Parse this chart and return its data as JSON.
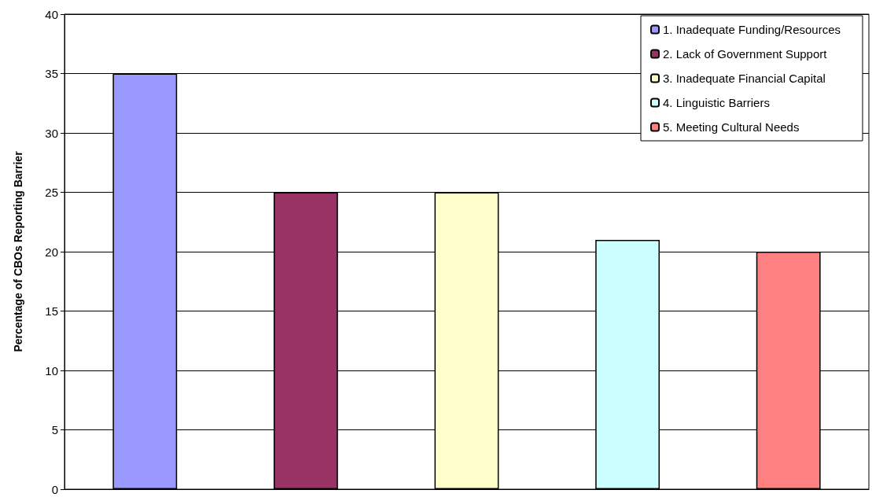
{
  "chart_data": {
    "type": "bar",
    "ylabel": "Percentage of CBOs Reporting Barrier",
    "categories": [
      null,
      null,
      null,
      null,
      null
    ],
    "series": [
      {
        "name": "1. Inadequate Funding/Resources",
        "color": "#9999ff",
        "values": [
          35,
          null,
          null,
          null,
          null
        ]
      },
      {
        "name": "2. Lack of Government Support",
        "color": "#993366",
        "values": [
          null,
          25,
          null,
          null,
          null
        ]
      },
      {
        "name": "3. Inadequate Financial Capital",
        "color": "#ffffcc",
        "values": [
          null,
          null,
          25,
          null,
          null
        ]
      },
      {
        "name": "4. Linguistic Barriers",
        "color": "#ccffff",
        "values": [
          null,
          null,
          null,
          21,
          null
        ]
      },
      {
        "name": "5. Meeting Cultural Needs",
        "color": "#ff8080",
        "values": [
          null,
          null,
          null,
          null,
          20
        ]
      }
    ],
    "ylim": [
      0,
      40
    ],
    "yticks": [
      0,
      5,
      10,
      15,
      20,
      25,
      30,
      35,
      40
    ],
    "grid": "y",
    "legend": "top right"
  }
}
